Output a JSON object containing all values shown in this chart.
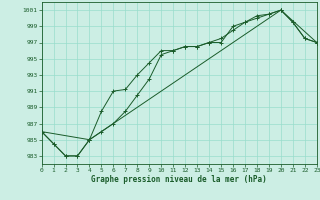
{
  "background_color": "#cceee4",
  "grid_color": "#99ddcc",
  "line_color": "#1a5c2a",
  "xlabel": "Graphe pression niveau de la mer (hPa)",
  "ylim": [
    982,
    1002
  ],
  "xlim": [
    0,
    23
  ],
  "yticks": [
    983,
    985,
    987,
    989,
    991,
    993,
    995,
    997,
    999,
    1001
  ],
  "xticks": [
    0,
    1,
    2,
    3,
    4,
    5,
    6,
    7,
    8,
    9,
    10,
    11,
    12,
    13,
    14,
    15,
    16,
    17,
    18,
    19,
    20,
    21,
    22,
    23
  ],
  "series1_x": [
    0,
    1,
    2,
    3,
    4,
    5,
    6,
    7,
    8,
    9,
    10,
    11,
    12,
    13,
    14,
    15,
    16,
    17,
    18,
    19,
    20,
    21,
    22,
    23
  ],
  "series1_y": [
    986.0,
    984.5,
    983.0,
    983.0,
    985.0,
    988.5,
    991.0,
    991.2,
    993.0,
    994.5,
    996.0,
    996.0,
    996.5,
    996.5,
    997.0,
    997.0,
    999.0,
    999.5,
    1000.3,
    1000.5,
    1001.0,
    999.5,
    997.5,
    997.0
  ],
  "series2_x": [
    0,
    1,
    2,
    3,
    4,
    5,
    6,
    7,
    8,
    9,
    10,
    11,
    12,
    13,
    14,
    15,
    16,
    17,
    18,
    19,
    20,
    21,
    22,
    23
  ],
  "series2_y": [
    986.0,
    984.5,
    983.0,
    983.0,
    985.0,
    986.0,
    987.0,
    988.5,
    990.5,
    992.5,
    995.5,
    996.0,
    996.5,
    996.5,
    997.0,
    997.5,
    998.5,
    999.5,
    1000.0,
    1000.5,
    1001.0,
    999.5,
    997.5,
    997.0
  ],
  "series3_x": [
    0,
    4,
    20,
    23
  ],
  "series3_y": [
    986.0,
    985.0,
    1001.0,
    997.0
  ]
}
